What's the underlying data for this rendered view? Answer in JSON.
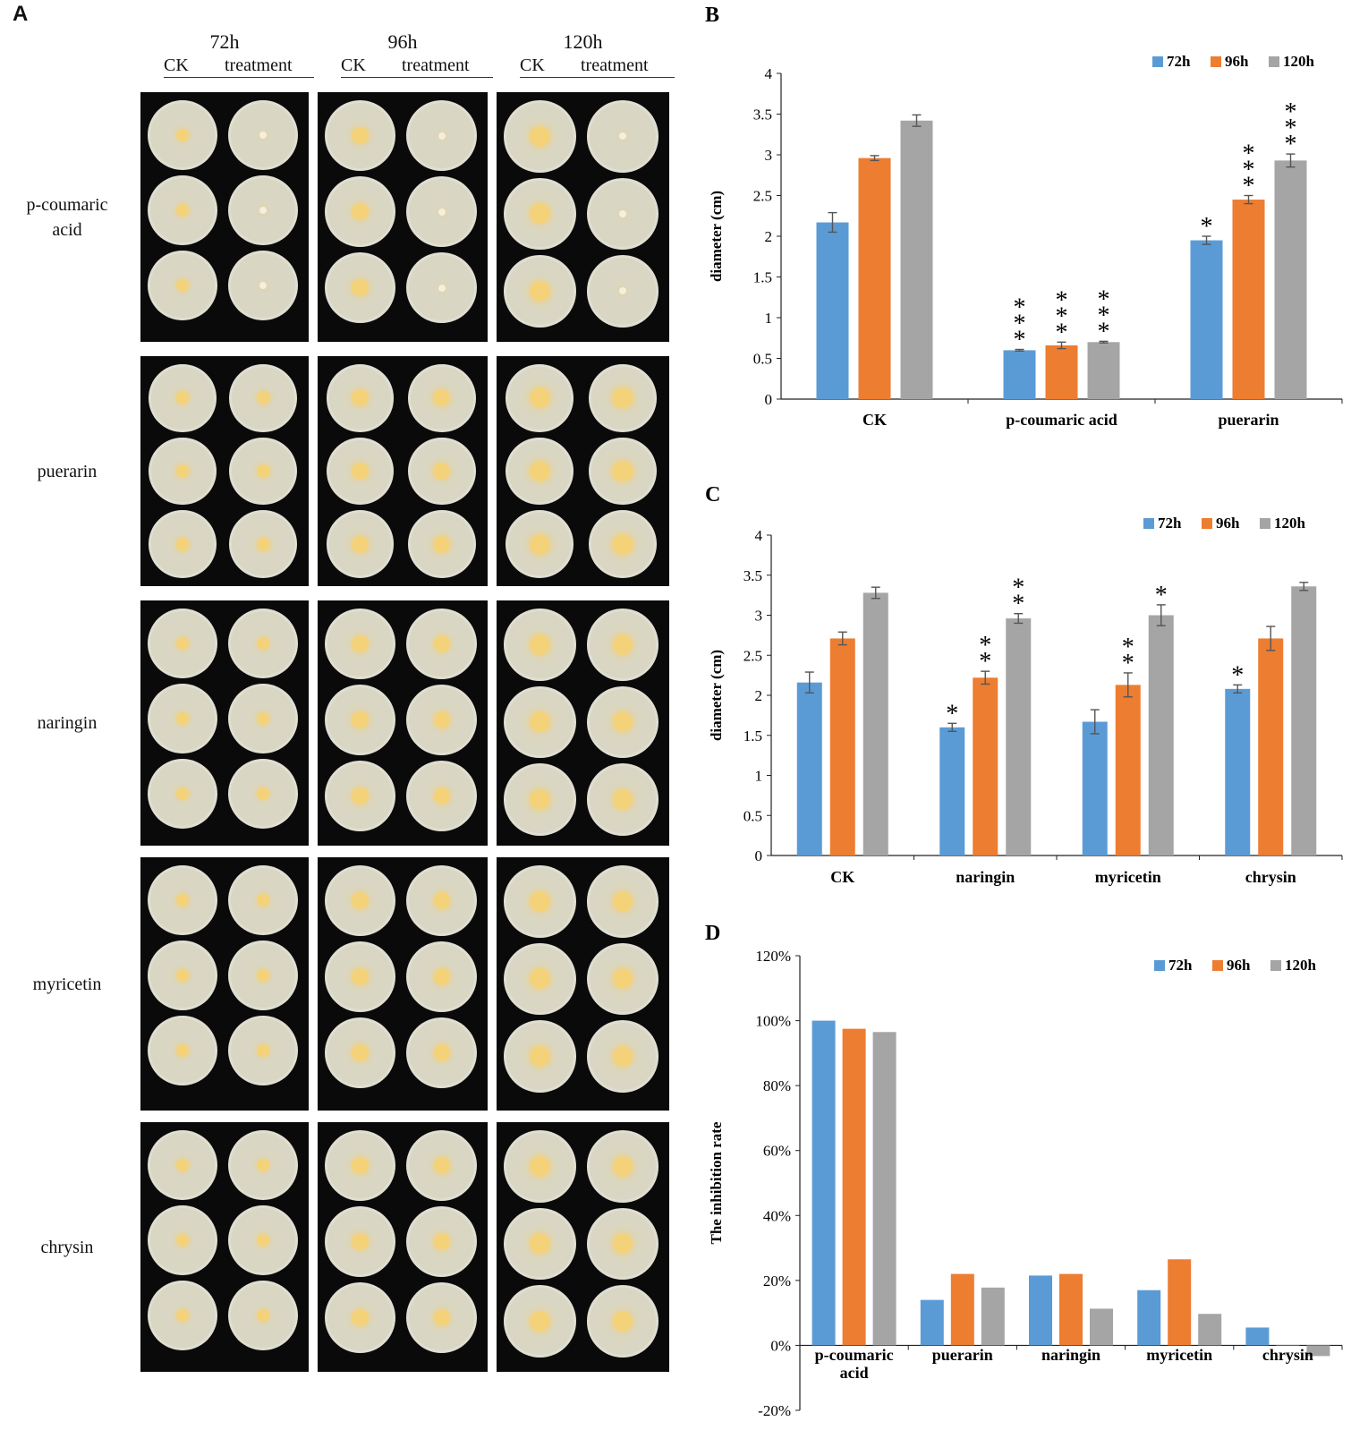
{
  "panel_a": {
    "letter": "A",
    "time_heads": [
      "72h",
      "96h",
      "120h"
    ],
    "ck_label": "CK",
    "treatment_label": "treatment",
    "rows": [
      {
        "label_lines": [
          "p-coumaric",
          "acid"
        ],
        "colony": "none"
      },
      {
        "label_lines": [
          "puerarin"
        ],
        "colony": "large"
      },
      {
        "label_lines": [
          "naringin"
        ],
        "colony": "medium"
      },
      {
        "label_lines": [
          "myricetin"
        ],
        "colony": "medium"
      },
      {
        "label_lines": [
          "chrysin"
        ],
        "colony": "medium"
      }
    ],
    "colors": {
      "agar": "#d9d6c3",
      "colony": "#f4d27a",
      "background": "#0a0a0a"
    }
  },
  "chart_data": [
    {
      "panel": "B",
      "type": "bar",
      "ylabel": "diameter (cm)",
      "ylim": [
        0,
        4
      ],
      "yticks": [
        "0",
        "0.5",
        "1",
        "1.5",
        "2",
        "2.5",
        "3",
        "3.5",
        "4"
      ],
      "categories": [
        "CK",
        "p-coumaric acid",
        "puerarin"
      ],
      "series": [
        {
          "name": "72h",
          "color": "#5b9bd5",
          "values": [
            2.17,
            0.6,
            1.95
          ],
          "errors": [
            0.12,
            0.01,
            0.05
          ]
        },
        {
          "name": "96h",
          "color": "#ed7d31",
          "values": [
            2.96,
            0.66,
            2.45
          ],
          "errors": [
            0.03,
            0.04,
            0.05
          ]
        },
        {
          "name": "120h",
          "color": "#a5a5a5",
          "values": [
            3.42,
            0.7,
            2.93
          ],
          "errors": [
            0.07,
            0.01,
            0.08
          ]
        }
      ],
      "significance": [
        [
          "",
          "",
          ""
        ],
        [
          "***",
          "***",
          "***"
        ],
        [
          "*",
          "***",
          "***"
        ]
      ],
      "legend": "top-right"
    },
    {
      "panel": "C",
      "type": "bar",
      "ylabel": "diameter (cm)",
      "ylim": [
        0,
        4
      ],
      "yticks": [
        "0",
        "0.5",
        "1",
        "1.5",
        "2",
        "2.5",
        "3",
        "3.5",
        "4"
      ],
      "categories": [
        "CK",
        "naringin",
        "myricetin",
        "chrysin"
      ],
      "series": [
        {
          "name": "72h",
          "color": "#5b9bd5",
          "values": [
            2.16,
            1.6,
            1.67,
            2.08
          ],
          "errors": [
            0.13,
            0.05,
            0.15,
            0.05
          ]
        },
        {
          "name": "96h",
          "color": "#ed7d31",
          "values": [
            2.71,
            2.22,
            2.13,
            2.71
          ],
          "errors": [
            0.08,
            0.08,
            0.15,
            0.15
          ]
        },
        {
          "name": "120h",
          "color": "#a5a5a5",
          "values": [
            3.28,
            2.96,
            3.0,
            3.36
          ],
          "errors": [
            0.07,
            0.06,
            0.13,
            0.05
          ]
        }
      ],
      "significance": [
        [
          "",
          "",
          ""
        ],
        [
          "*",
          "**",
          "**"
        ],
        [
          "",
          "**",
          "*"
        ],
        [
          "*",
          "",
          ""
        ]
      ],
      "legend": "top-right"
    },
    {
      "panel": "D",
      "type": "bar",
      "ylabel": "The inhibition rate",
      "ylim": [
        -0.2,
        1.2
      ],
      "yticks": [
        "-20%",
        "0%",
        "20%",
        "40%",
        "60%",
        "80%",
        "100%",
        "120%"
      ],
      "categories": [
        "p-coumaric acid",
        "puerarin",
        "naringin",
        "myricetin",
        "chrysin"
      ],
      "category_lines": [
        [
          "p-coumaric",
          "acid"
        ],
        [
          "puerarin"
        ],
        [
          "naringin"
        ],
        [
          "myricetin"
        ],
        [
          "chrysin"
        ]
      ],
      "series": [
        {
          "name": "72h",
          "color": "#5b9bd5",
          "values": [
            1.0,
            0.14,
            0.215,
            0.17,
            0.055
          ]
        },
        {
          "name": "96h",
          "color": "#ed7d31",
          "values": [
            0.975,
            0.22,
            0.22,
            0.265,
            0.0
          ]
        },
        {
          "name": "120h",
          "color": "#a5a5a5",
          "values": [
            0.965,
            0.178,
            0.113,
            0.097,
            -0.033
          ]
        }
      ],
      "legend": "top-right"
    }
  ]
}
